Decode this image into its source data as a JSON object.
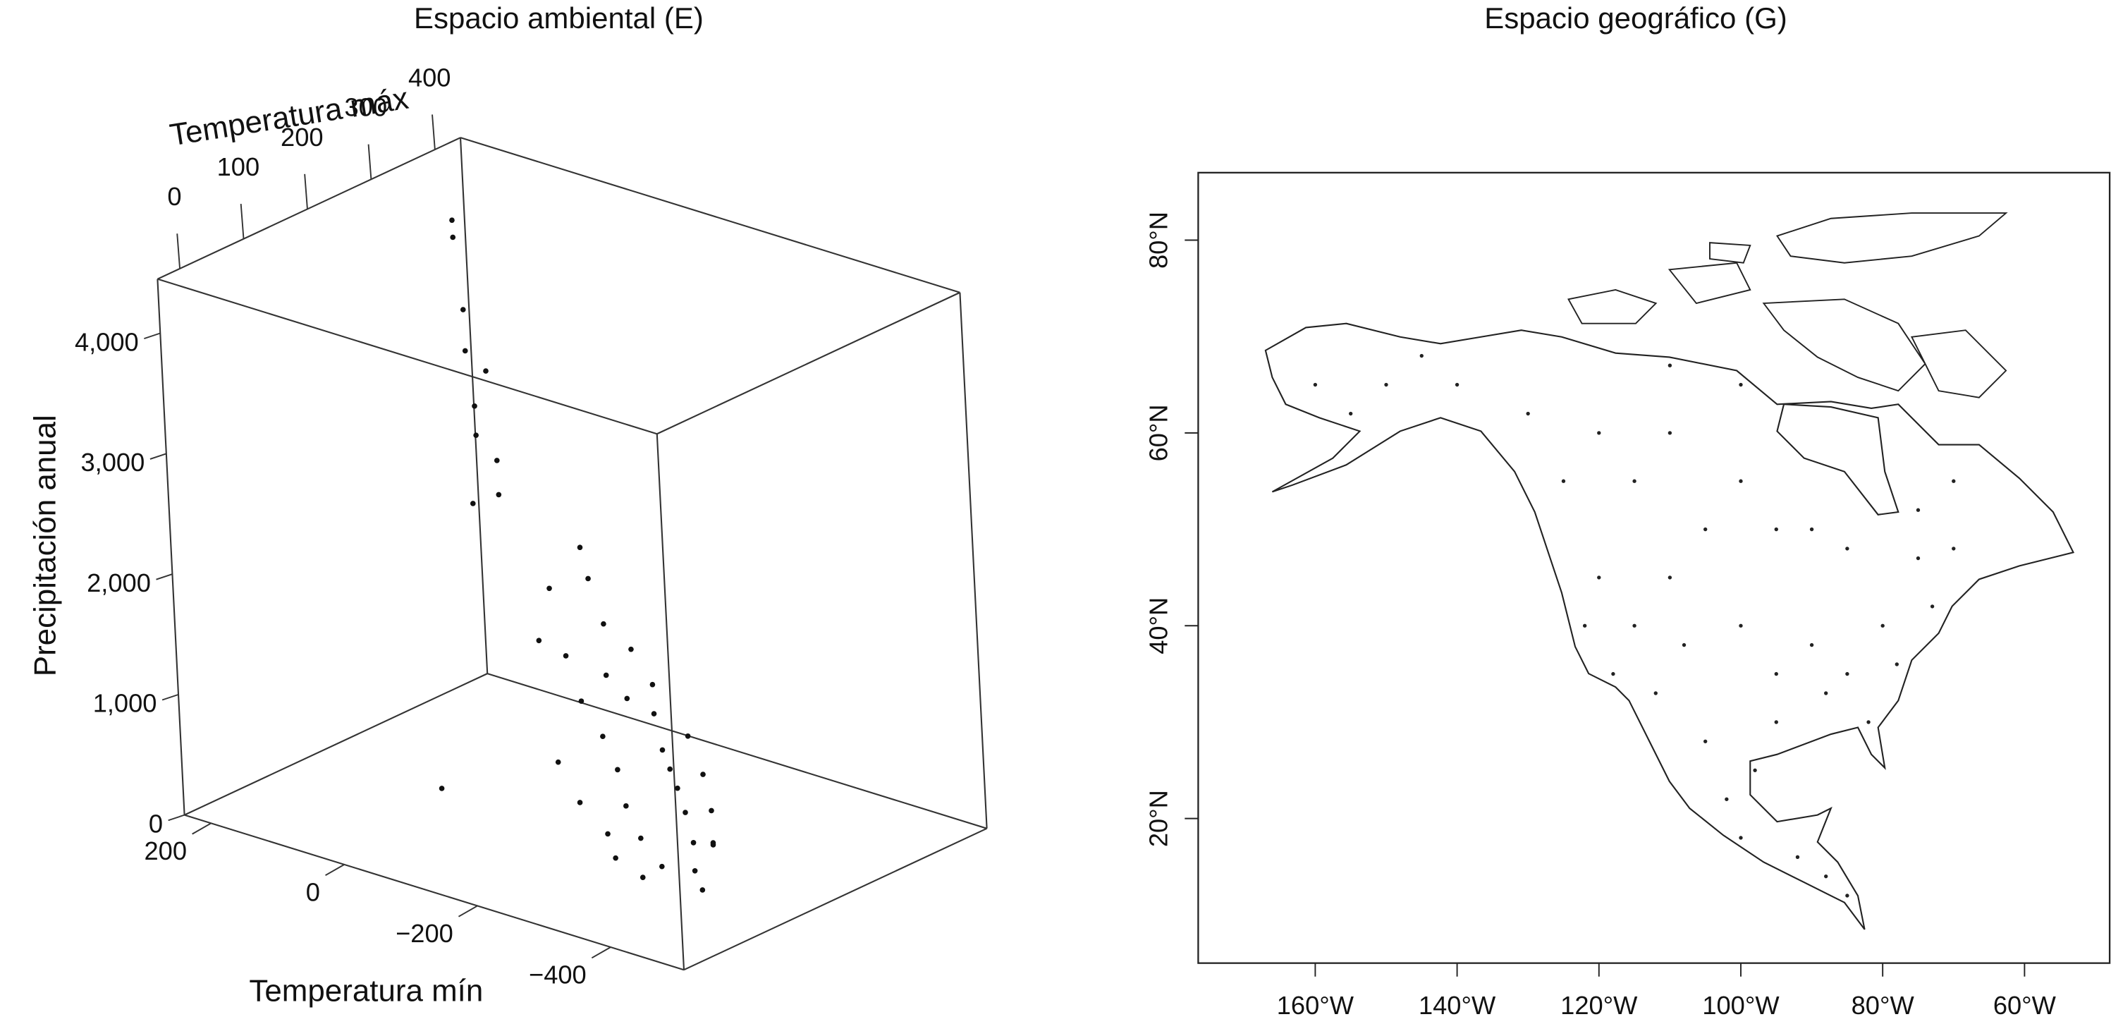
{
  "chart_data": [
    {
      "type": "scatter3d",
      "title": "Espacio ambiental (E)",
      "xlabel": "Temperatura mín",
      "ylabel": "Temperatura máx",
      "zlabel": "Precipitación anual",
      "xlim": [
        240,
        -510
      ],
      "ylim": [
        -35,
        440
      ],
      "zlim": [
        0,
        4450
      ],
      "xticks": [
        200,
        0,
        {
          "value": -200,
          "label": "−200"
        },
        {
          "value": -400,
          "label": "−400"
        }
      ],
      "yticks": [
        0,
        100,
        200,
        300,
        400
      ],
      "zticks": [
        0,
        {
          "value": 1000,
          "label": "1,000"
        },
        {
          "value": 2000,
          "label": "2,000"
        },
        {
          "value": 3000,
          "label": "3,000"
        },
        {
          "value": 4000,
          "label": "4,000"
        }
      ],
      "color": "#111111",
      "x": [
        100,
        90,
        60,
        50,
        40,
        30,
        20,
        0,
        -20,
        10,
        -100,
        -120,
        -80,
        -150,
        -200,
        -180,
        -220,
        -250,
        -280,
        -300,
        -320,
        -350,
        -380,
        -400,
        -420,
        -350,
        -300,
        -260,
        -230,
        -200,
        -160,
        -130,
        -300,
        -340,
        -370,
        -250,
        -200,
        -150,
        -280,
        -330,
        -390,
        -410,
        -240,
        -100,
        -60
      ],
      "y": [
        280,
        270,
        250,
        240,
        260,
        230,
        220,
        230,
        210,
        200,
        250,
        240,
        220,
        230,
        220,
        200,
        190,
        200,
        180,
        170,
        160,
        140,
        120,
        100,
        90,
        100,
        120,
        140,
        160,
        170,
        180,
        190,
        200,
        180,
        160,
        120,
        130,
        150,
        100,
        90,
        140,
        120,
        210,
        180,
        60
      ],
      "z": [
        4400,
        4300,
        3800,
        3500,
        3300,
        3100,
        2900,
        2700,
        2500,
        2400,
        2100,
        1900,
        1800,
        1600,
        1500,
        1300,
        1200,
        1100,
        900,
        800,
        700,
        600,
        450,
        300,
        200,
        250,
        350,
        500,
        700,
        900,
        1100,
        1400,
        1000,
        800,
        600,
        300,
        450,
        650,
        200,
        150,
        400,
        500,
        1300,
        1500,
        500
      ]
    },
    {
      "type": "scatter",
      "title": "Espacio geográfico (G)",
      "xlim": [
        -176.5,
        -48
      ],
      "ylim": [
        5,
        87
      ],
      "xticks": [
        {
          "value": -160,
          "label": "160°W"
        },
        {
          "value": -140,
          "label": "140°W"
        },
        {
          "value": -120,
          "label": "120°W"
        },
        {
          "value": -100,
          "label": "100°W"
        },
        {
          "value": -80,
          "label": "80°W"
        },
        {
          "value": -60,
          "label": "60°W"
        }
      ],
      "yticks": [
        {
          "value": 20,
          "label": "20°N"
        },
        {
          "value": 40,
          "label": "40°N"
        },
        {
          "value": 60,
          "label": "60°N"
        },
        {
          "value": 80,
          "label": "80°N"
        }
      ],
      "color": "#222222",
      "x": [
        -100,
        -95,
        -90,
        -85,
        -80,
        -110,
        -115,
        -120,
        -105,
        -100,
        -110,
        -120,
        -130,
        -140,
        -150,
        -155,
        -160,
        -145,
        -125,
        -115,
        -95,
        -90,
        -85,
        -75,
        -70,
        -70,
        -75,
        -100,
        -110,
        -95,
        -98,
        -102,
        -100,
        -92,
        -88,
        -85,
        -105,
        -88,
        -82,
        -78,
        -73,
        -118,
        -112,
        -122,
        -108
      ],
      "y": [
        40,
        35,
        38,
        35,
        40,
        45,
        40,
        45,
        50,
        55,
        60,
        60,
        62,
        65,
        65,
        62,
        65,
        68,
        55,
        55,
        50,
        50,
        48,
        47,
        48,
        55,
        52,
        65,
        67,
        30,
        25,
        22,
        18,
        16,
        14,
        12,
        28,
        33,
        30,
        36,
        42,
        35,
        33,
        40,
        38
      ]
    }
  ]
}
